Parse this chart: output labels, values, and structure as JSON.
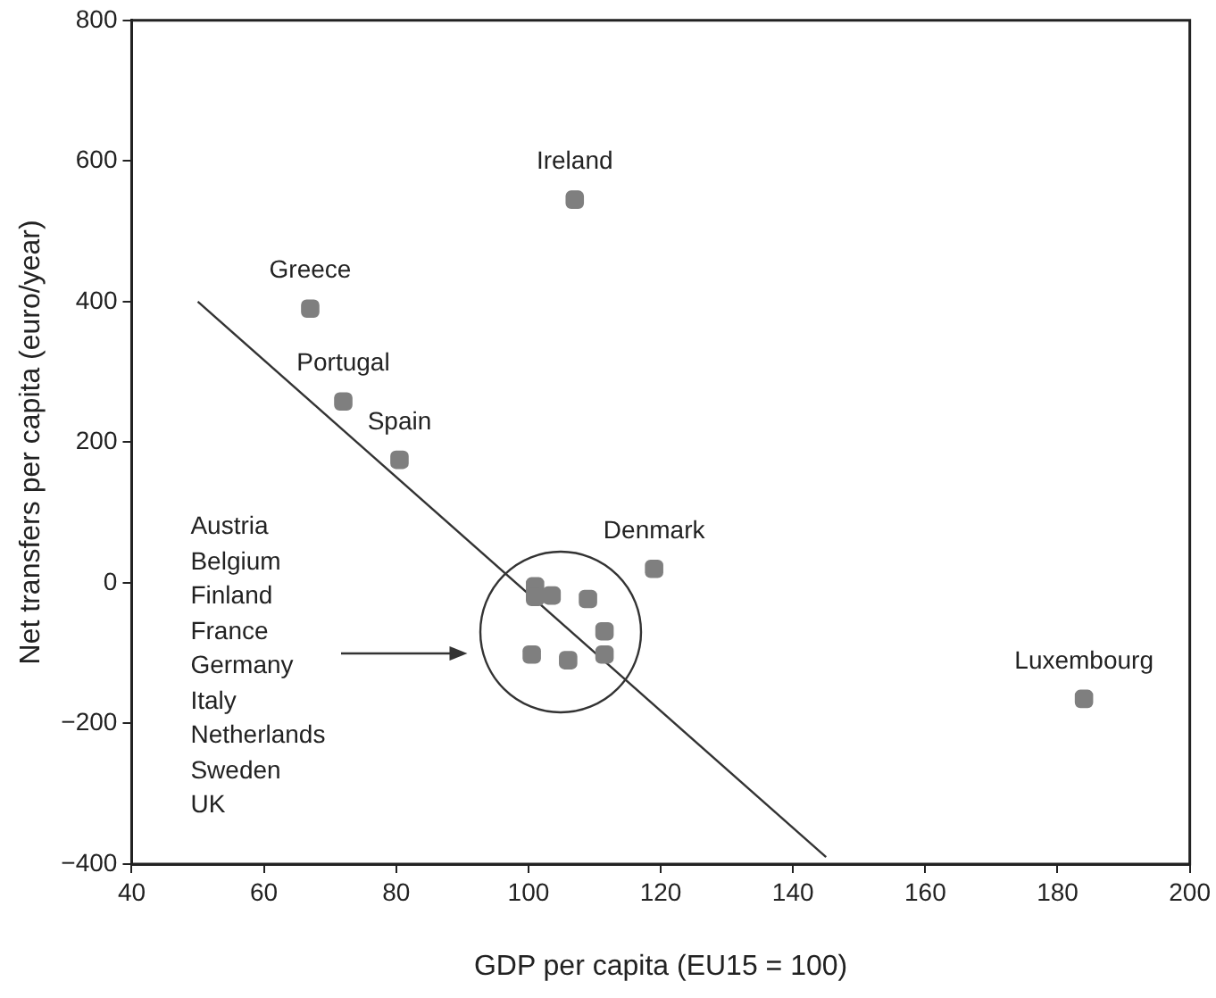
{
  "chart_data": {
    "type": "scatter",
    "xlabel": "GDP per capita (EU15 = 100)",
    "ylabel": "Net transfers per capita (euro/year)",
    "xlim": [
      40,
      200
    ],
    "xticks": [
      40,
      60,
      80,
      100,
      120,
      140,
      160,
      180,
      200
    ],
    "ylim": [
      -400,
      800
    ],
    "yticks": [
      -400,
      -200,
      0,
      200,
      400,
      600,
      800
    ],
    "grid": false,
    "legend": false,
    "marker": "square",
    "series": [
      {
        "type": "scatter",
        "color": "#7f7f7f",
        "x": [
          107,
          67,
          72,
          80.5,
          119,
          101,
          101,
          103.5,
          109,
          111.5,
          111.5,
          100.5,
          106,
          184
        ],
        "values": [
          545,
          390,
          258,
          175,
          20,
          -5,
          -20,
          -18,
          -23,
          -69,
          -102,
          -102,
          -110,
          -165
        ]
      },
      {
        "type": "line",
        "color": "#333333",
        "x": [
          50,
          145
        ],
        "values": [
          400,
          -390
        ],
        "marker": "none",
        "line_style": "solid"
      }
    ],
    "annotations": [
      {
        "text": "Ireland",
        "x": 107,
        "y": 545
      },
      {
        "text": "Greece",
        "x": 67,
        "y": 390
      },
      {
        "text": "Portugal",
        "x": 72,
        "y": 258
      },
      {
        "text": "Spain",
        "x": 80.5,
        "y": 175
      },
      {
        "text": "Denmark",
        "x": 119,
        "y": 20
      },
      {
        "text": "Luxembourg",
        "x": 184,
        "y": -165
      },
      "Austria",
      "Belgium",
      "Finland",
      "France",
      "Germany",
      "Italy",
      "Netherlands",
      "Sweden",
      "UK"
    ]
  }
}
